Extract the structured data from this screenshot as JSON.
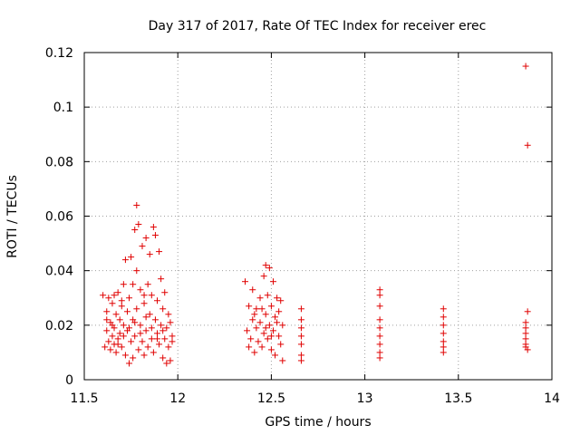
{
  "chart_data": {
    "type": "scatter",
    "title": "Day 317 of 2017, Rate Of TEC Index for receiver erec",
    "xlabel": "GPS time / hours",
    "ylabel": "ROTI / TECUs",
    "xlim": [
      11.5,
      14
    ],
    "ylim": [
      0,
      0.12
    ],
    "x_ticks": [
      "11.5",
      "12",
      "12.5",
      "13",
      "13.5",
      "14"
    ],
    "y_ticks": [
      "0",
      "0.02",
      "0.04",
      "0.06",
      "0.08",
      "0.1",
      "0.12"
    ],
    "grid": true,
    "marker": "+",
    "marker_color": "#e00000",
    "series": [
      {
        "name": "ROTI",
        "points": [
          [
            11.6,
            0.031
          ],
          [
            11.61,
            0.012
          ],
          [
            11.62,
            0.018
          ],
          [
            11.62,
            0.025
          ],
          [
            11.63,
            0.014
          ],
          [
            11.63,
            0.03
          ],
          [
            11.64,
            0.011
          ],
          [
            11.64,
            0.021
          ],
          [
            11.65,
            0.016
          ],
          [
            11.65,
            0.028
          ],
          [
            11.66,
            0.013
          ],
          [
            11.66,
            0.019
          ],
          [
            11.67,
            0.024
          ],
          [
            11.67,
            0.01
          ],
          [
            11.68,
            0.032
          ],
          [
            11.68,
            0.015
          ],
          [
            11.69,
            0.022
          ],
          [
            11.69,
            0.017
          ],
          [
            11.7,
            0.027
          ],
          [
            11.7,
            0.012
          ],
          [
            11.71,
            0.035
          ],
          [
            11.71,
            0.02
          ],
          [
            11.72,
            0.009
          ],
          [
            11.72,
            0.044
          ],
          [
            11.73,
            0.018
          ],
          [
            11.73,
            0.025
          ],
          [
            11.74,
            0.006
          ],
          [
            11.74,
            0.03
          ],
          [
            11.75,
            0.014
          ],
          [
            11.75,
            0.045
          ],
          [
            11.76,
            0.022
          ],
          [
            11.76,
            0.008
          ],
          [
            11.77,
            0.055
          ],
          [
            11.77,
            0.016
          ],
          [
            11.78,
            0.064
          ],
          [
            11.78,
            0.026
          ],
          [
            11.78,
            0.04
          ],
          [
            11.79,
            0.011
          ],
          [
            11.79,
            0.057
          ],
          [
            11.8,
            0.02
          ],
          [
            11.8,
            0.033
          ],
          [
            11.81,
            0.014
          ],
          [
            11.81,
            0.049
          ],
          [
            11.82,
            0.009
          ],
          [
            11.82,
            0.028
          ],
          [
            11.83,
            0.052
          ],
          [
            11.83,
            0.018
          ],
          [
            11.84,
            0.035
          ],
          [
            11.84,
            0.012
          ],
          [
            11.85,
            0.024
          ],
          [
            11.85,
            0.046
          ],
          [
            11.86,
            0.015
          ],
          [
            11.86,
            0.031
          ],
          [
            11.87,
            0.056
          ],
          [
            11.87,
            0.01
          ],
          [
            11.88,
            0.022
          ],
          [
            11.88,
            0.053
          ],
          [
            11.89,
            0.017
          ],
          [
            11.89,
            0.029
          ],
          [
            11.9,
            0.047
          ],
          [
            11.9,
            0.013
          ],
          [
            11.91,
            0.037
          ],
          [
            11.91,
            0.02
          ],
          [
            11.92,
            0.008
          ],
          [
            11.92,
            0.026
          ],
          [
            11.93,
            0.015
          ],
          [
            11.93,
            0.032
          ],
          [
            11.94,
            0.006
          ],
          [
            11.94,
            0.019
          ],
          [
            11.95,
            0.024
          ],
          [
            11.95,
            0.012
          ],
          [
            11.96,
            0.021
          ],
          [
            11.96,
            0.007
          ],
          [
            11.97,
            0.016
          ],
          [
            11.97,
            0.014
          ],
          [
            11.62,
            0.022
          ],
          [
            11.65,
            0.02
          ],
          [
            11.68,
            0.013
          ],
          [
            11.71,
            0.016
          ],
          [
            11.74,
            0.019
          ],
          [
            11.77,
            0.021
          ],
          [
            11.8,
            0.017
          ],
          [
            11.83,
            0.023
          ],
          [
            11.86,
            0.019
          ],
          [
            11.89,
            0.015
          ],
          [
            11.92,
            0.018
          ],
          [
            11.66,
            0.031
          ],
          [
            11.7,
            0.029
          ],
          [
            11.76,
            0.035
          ],
          [
            11.82,
            0.031
          ],
          [
            12.36,
            0.036
          ],
          [
            12.37,
            0.018
          ],
          [
            12.38,
            0.012
          ],
          [
            12.38,
            0.027
          ],
          [
            12.39,
            0.015
          ],
          [
            12.4,
            0.022
          ],
          [
            12.4,
            0.033
          ],
          [
            12.41,
            0.01
          ],
          [
            12.42,
            0.019
          ],
          [
            12.42,
            0.026
          ],
          [
            12.43,
            0.014
          ],
          [
            12.44,
            0.03
          ],
          [
            12.44,
            0.021
          ],
          [
            12.45,
            0.012
          ],
          [
            12.46,
            0.038
          ],
          [
            12.46,
            0.017
          ],
          [
            12.47,
            0.024
          ],
          [
            12.47,
            0.042
          ],
          [
            12.48,
            0.015
          ],
          [
            12.48,
            0.031
          ],
          [
            12.49,
            0.02
          ],
          [
            12.49,
            0.041
          ],
          [
            12.5,
            0.011
          ],
          [
            12.5,
            0.027
          ],
          [
            12.51,
            0.036
          ],
          [
            12.51,
            0.018
          ],
          [
            12.52,
            0.023
          ],
          [
            12.52,
            0.009
          ],
          [
            12.53,
            0.03
          ],
          [
            12.54,
            0.016
          ],
          [
            12.54,
            0.025
          ],
          [
            12.55,
            0.013
          ],
          [
            12.55,
            0.029
          ],
          [
            12.56,
            0.02
          ],
          [
            12.56,
            0.007
          ],
          [
            12.53,
            0.021
          ],
          [
            12.47,
            0.019
          ],
          [
            12.41,
            0.024
          ],
          [
            12.45,
            0.026
          ],
          [
            12.5,
            0.016
          ],
          [
            12.66,
            0.026
          ],
          [
            12.66,
            0.022
          ],
          [
            12.66,
            0.019
          ],
          [
            12.66,
            0.016
          ],
          [
            12.66,
            0.013
          ],
          [
            12.66,
            0.009
          ],
          [
            12.66,
            0.007
          ],
          [
            13.08,
            0.033
          ],
          [
            13.08,
            0.031
          ],
          [
            13.08,
            0.027
          ],
          [
            13.08,
            0.022
          ],
          [
            13.08,
            0.019
          ],
          [
            13.08,
            0.016
          ],
          [
            13.08,
            0.013
          ],
          [
            13.08,
            0.01
          ],
          [
            13.08,
            0.008
          ],
          [
            13.42,
            0.026
          ],
          [
            13.42,
            0.023
          ],
          [
            13.42,
            0.02
          ],
          [
            13.42,
            0.017
          ],
          [
            13.42,
            0.014
          ],
          [
            13.42,
            0.012
          ],
          [
            13.42,
            0.01
          ],
          [
            13.86,
            0.115
          ],
          [
            13.87,
            0.086
          ],
          [
            13.87,
            0.025
          ],
          [
            13.86,
            0.021
          ],
          [
            13.86,
            0.019
          ],
          [
            13.86,
            0.017
          ],
          [
            13.86,
            0.015
          ],
          [
            13.86,
            0.013
          ],
          [
            13.86,
            0.012
          ],
          [
            13.87,
            0.011
          ]
        ]
      }
    ]
  }
}
